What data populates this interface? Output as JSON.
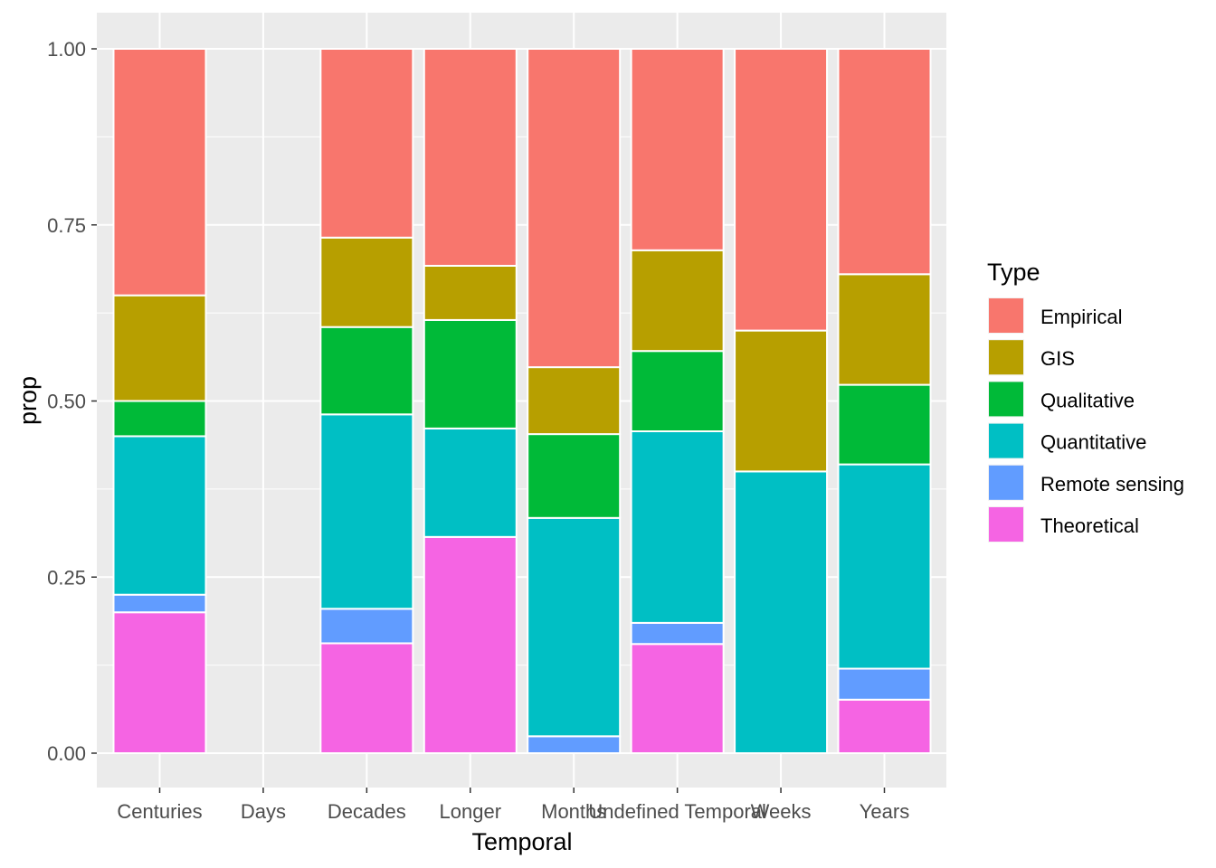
{
  "chart_data": {
    "type": "bar",
    "stacked": true,
    "xlabel": "Temporal",
    "ylabel": "prop",
    "ylim": [
      0,
      1
    ],
    "yticks": [
      "0.00",
      "0.25",
      "0.50",
      "0.75",
      "1.00"
    ],
    "ytick_values": [
      0,
      0.25,
      0.5,
      0.75,
      1.0
    ],
    "grid": true,
    "legend": {
      "title": "Type",
      "position": "right"
    },
    "categories": [
      "Centuries",
      "Days",
      "Decades",
      "Longer",
      "Months",
      "Undefined Temporal",
      "Weeks",
      "Years"
    ],
    "series": [
      {
        "name": "Empirical",
        "color": "#F8766D",
        "values": [
          0.35,
          0,
          0.268,
          0.308,
          0.452,
          0.286,
          0.4,
          0.32
        ]
      },
      {
        "name": "GIS",
        "color": "#B79F00",
        "values": [
          0.15,
          0,
          0.127,
          0.077,
          0.095,
          0.143,
          0.2,
          0.157
        ]
      },
      {
        "name": "Qualitative",
        "color": "#00BA38",
        "values": [
          0.05,
          0,
          0.124,
          0.154,
          0.119,
          0.114,
          0,
          0.113
        ]
      },
      {
        "name": "Quantitative",
        "color": "#00BFC4",
        "values": [
          0.225,
          0,
          0.276,
          0.154,
          0.31,
          0.272,
          0.4,
          0.29
        ]
      },
      {
        "name": "Remote sensing",
        "color": "#619CFF",
        "values": [
          0.025,
          0,
          0.049,
          0,
          0.024,
          0.03,
          0,
          0.044
        ]
      },
      {
        "name": "Theoretical",
        "color": "#F564E3",
        "values": [
          0.2,
          0,
          0.156,
          0.307,
          0,
          0.155,
          0,
          0.076
        ]
      }
    ]
  }
}
